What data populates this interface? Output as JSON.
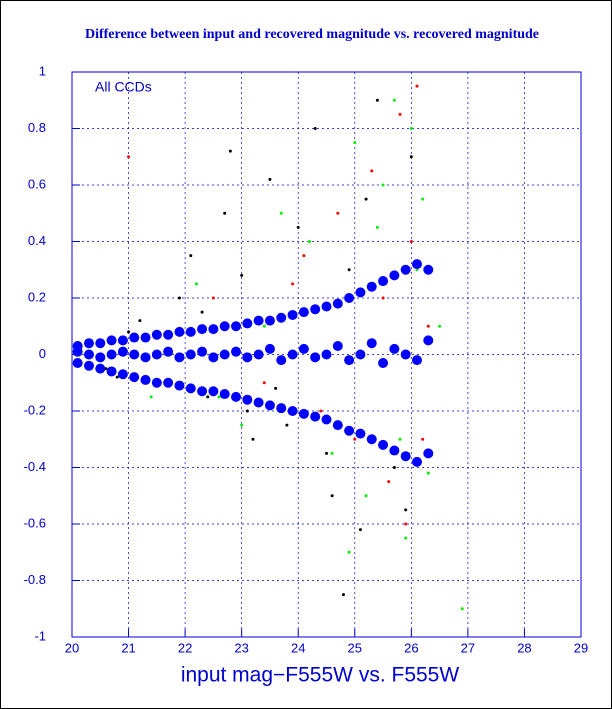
{
  "chart_data": {
    "type": "scatter",
    "title": "Difference between input and recovered magnitude vs. recovered magnitude",
    "xlabel": "input mag−F555W vs. F555W",
    "annotation": "All CCDs",
    "xlim": [
      20,
      29
    ],
    "xticks": [
      20,
      21,
      22,
      23,
      24,
      25,
      26,
      27,
      28,
      29
    ],
    "ylim": [
      -1,
      1
    ],
    "yticks": [
      -1,
      -0.8,
      -0.6,
      -0.4,
      -0.2,
      0,
      0.2,
      0.4,
      0.6,
      0.8,
      1
    ],
    "grid": true,
    "series": [
      {
        "color": "#000000",
        "x": [
          20.3,
          20.8,
          21.2,
          21.5,
          21.9,
          22.1,
          22.4,
          22.7,
          23.0,
          23.2,
          23.5,
          23.8,
          24.0,
          24.3,
          24.6,
          24.9,
          25.1,
          25.4,
          25.7,
          26.0,
          22.3,
          23.6,
          24.5,
          25.2,
          21.0,
          23.1,
          24.8,
          25.9,
          22.8,
          20.6
        ],
        "values": [
          0.05,
          -0.08,
          0.12,
          -0.1,
          0.2,
          0.35,
          -0.15,
          0.5,
          0.28,
          -0.3,
          0.62,
          -0.25,
          0.45,
          0.8,
          -0.5,
          0.3,
          -0.62,
          0.9,
          -0.4,
          0.7,
          0.15,
          -0.12,
          -0.35,
          0.55,
          0.08,
          -0.2,
          -0.85,
          -0.55,
          0.72,
          -0.05
        ]
      },
      {
        "color": "#ff0000",
        "x": [
          21.0,
          22.5,
          23.4,
          24.1,
          24.7,
          25.0,
          25.3,
          25.6,
          25.8,
          26.0,
          26.2,
          24.4,
          25.5,
          25.9,
          26.1,
          23.9,
          22.9,
          26.3
        ],
        "values": [
          0.7,
          0.2,
          -0.1,
          0.35,
          0.5,
          -0.3,
          0.65,
          -0.45,
          0.85,
          0.4,
          -0.3,
          -0.2,
          0.2,
          -0.6,
          0.95,
          0.25,
          -0.15,
          0.1
        ]
      },
      {
        "color": "#00ee00",
        "x": [
          21.4,
          22.2,
          23.0,
          23.7,
          24.2,
          24.6,
          25.0,
          25.2,
          25.5,
          25.7,
          25.9,
          26.1,
          26.3,
          26.5,
          26.9,
          24.9,
          25.4,
          26.0,
          23.4,
          22.6,
          25.8,
          26.2
        ],
        "values": [
          -0.15,
          0.25,
          -0.25,
          0.5,
          0.4,
          -0.35,
          0.75,
          -0.5,
          0.6,
          0.9,
          -0.65,
          0.3,
          -0.42,
          0.1,
          -0.9,
          -0.7,
          0.45,
          0.8,
          0.1,
          -0.15,
          -0.3,
          0.55
        ]
      },
      {
        "color": "#0000ff",
        "x": [
          20.1,
          20.3,
          20.5,
          20.7,
          20.9,
          21.1,
          21.3,
          21.5,
          21.7,
          21.9,
          22.1,
          22.3,
          22.5,
          22.7,
          22.9,
          23.1,
          23.3,
          23.5,
          23.7,
          23.9,
          24.1,
          24.3,
          24.5,
          24.7,
          24.9,
          25.1,
          25.3,
          25.5,
          25.7,
          25.9,
          26.1,
          26.3,
          20.1,
          20.3,
          20.5,
          20.7,
          20.9,
          21.1,
          21.3,
          21.5,
          21.7,
          21.9,
          22.1,
          22.3,
          22.5,
          22.7,
          22.9,
          23.1,
          23.3,
          23.5,
          23.7,
          23.9,
          24.1,
          24.3,
          24.5,
          24.7,
          24.9,
          25.1,
          25.3,
          25.5,
          25.7,
          25.9,
          26.1,
          26.3,
          20.1,
          20.3,
          20.5,
          20.7,
          20.9,
          21.1,
          21.3,
          21.5,
          21.7,
          21.9,
          22.1,
          22.3,
          22.5,
          22.7,
          22.9,
          23.1,
          23.3,
          23.5,
          23.7,
          23.9,
          24.1,
          24.3,
          24.5,
          24.7,
          24.9,
          25.1,
          25.3,
          25.5,
          25.7,
          25.9,
          26.1,
          26.3
        ],
        "values": [
          0.03,
          0.04,
          0.04,
          0.05,
          0.05,
          0.06,
          0.06,
          0.07,
          0.07,
          0.08,
          0.08,
          0.09,
          0.09,
          0.1,
          0.1,
          0.11,
          0.12,
          0.12,
          0.13,
          0.14,
          0.15,
          0.16,
          0.17,
          0.18,
          0.2,
          0.22,
          0.24,
          0.26,
          0.28,
          0.3,
          0.32,
          0.3,
          -0.03,
          -0.04,
          -0.05,
          -0.06,
          -0.07,
          -0.08,
          -0.09,
          -0.1,
          -0.1,
          -0.11,
          -0.12,
          -0.13,
          -0.13,
          -0.14,
          -0.15,
          -0.16,
          -0.17,
          -0.18,
          -0.19,
          -0.2,
          -0.21,
          -0.22,
          -0.23,
          -0.25,
          -0.27,
          -0.28,
          -0.3,
          -0.32,
          -0.34,
          -0.36,
          -0.38,
          -0.35,
          0.01,
          0,
          -0.01,
          0,
          0.01,
          0,
          -0.01,
          0,
          0.01,
          -0.01,
          0,
          0.01,
          -0.01,
          0,
          0.01,
          -0.01,
          0,
          0.02,
          -0.02,
          0,
          0.02,
          -0.01,
          0,
          0.03,
          -0.02,
          0,
          0.04,
          -0.03,
          0.02,
          0,
          -0.02,
          0.05
        ]
      }
    ]
  }
}
